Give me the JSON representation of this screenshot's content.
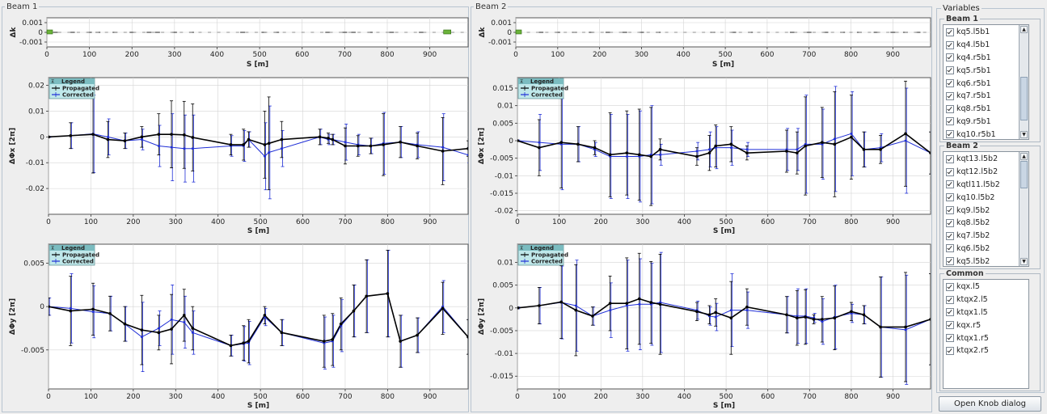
{
  "panels": {
    "beam1_title": "Beam 1",
    "beam2_title": "Beam 2"
  },
  "colors": {
    "propagated": "#000000",
    "corrected": "#1f2ed6",
    "legend_bg": "#bfe8ea",
    "legend_header": "#7bbcc0",
    "knob_fill": "#6ab23a"
  },
  "legend": {
    "title": "Legend",
    "items": [
      "Propagated",
      "Corrected"
    ]
  },
  "chart_data": [
    {
      "id": "b1_dk",
      "type": "scatter",
      "title": "",
      "xlabel": "S [m]",
      "ylabel": "Δk",
      "xlim": [
        0,
        990
      ],
      "ylim": [
        -0.0015,
        0.0015
      ],
      "xticks": [
        0,
        100,
        200,
        300,
        400,
        500,
        600,
        700,
        800,
        900
      ],
      "yticks": [
        0.001,
        0,
        -0.001
      ],
      "ytick_labels": [
        "0.001",
        "0",
        "-0.001"
      ],
      "markers_s": [
        20,
        60,
        100,
        120,
        160,
        200,
        240,
        260,
        300,
        340,
        460,
        510,
        540,
        660,
        700,
        720,
        760,
        810,
        880,
        940
      ],
      "knob_s": [
        0,
        940
      ]
    },
    {
      "id": "b1_dphix",
      "type": "line",
      "title": "",
      "xlabel": "S [m]",
      "ylabel": "ΔΦx [2π]",
      "xlim": [
        0,
        990
      ],
      "ylim": [
        -0.03,
        0.023
      ],
      "yticks": [
        0.02,
        0.01,
        0,
        -0.01,
        -0.02
      ],
      "ytick_labels": [
        "0.02",
        "0.01",
        "0",
        "-0.01",
        "-0.02"
      ],
      "x": [
        0,
        52,
        105,
        140,
        180,
        220,
        260,
        290,
        320,
        340,
        430,
        460,
        472,
        510,
        520,
        550,
        640,
        660,
        670,
        700,
        730,
        760,
        790,
        830,
        870,
        930,
        990
      ],
      "series": [
        {
          "name": "Propagated",
          "values": [
            0,
            0.0005,
            0.001,
            -0.001,
            -0.0015,
            0,
            0.001,
            0.001,
            0.0008,
            -0.0002,
            -0.003,
            -0.003,
            -0.001,
            -0.003,
            -0.0025,
            -0.001,
            0,
            -0.0005,
            -0.001,
            -0.0035,
            -0.0035,
            -0.0035,
            -0.003,
            -0.002,
            -0.0035,
            -0.0055,
            -0.0045
          ]
        },
        {
          "name": "Corrected",
          "values": [
            0,
            0.0005,
            0.0012,
            0,
            -0.0015,
            -0.001,
            -0.0035,
            -0.004,
            -0.0045,
            -0.0045,
            -0.0035,
            -0.0035,
            -0.001,
            -0.0075,
            -0.006,
            -0.0045,
            0,
            -0.001,
            -0.001,
            -0.002,
            -0.003,
            -0.0035,
            -0.0025,
            -0.002,
            -0.003,
            -0.004,
            -0.007
          ]
        }
      ],
      "errors": [
        0.0002,
        0.005,
        0.015,
        0.007,
        0.003,
        0.004,
        0.008,
        0.013,
        0.013,
        0.013,
        0.004,
        0.006,
        0.003,
        0.013,
        0.018,
        0.007,
        0.003,
        0.002,
        0.002,
        0.007,
        0.004,
        0.003,
        0.012,
        0.006,
        0.005,
        0.013,
        0.003
      ]
    },
    {
      "id": "b1_dphiy",
      "type": "line",
      "title": "",
      "xlabel": "S [m]",
      "ylabel": "ΔΦy [2π]",
      "xlim": [
        0,
        990
      ],
      "ylim": [
        -0.0095,
        0.0072
      ],
      "yticks": [
        0.005,
        0,
        -0.005
      ],
      "ytick_labels": [
        "0.005",
        "0",
        "-0.005"
      ],
      "x": [
        0,
        52,
        105,
        145,
        180,
        220,
        260,
        290,
        320,
        340,
        430,
        460,
        472,
        510,
        550,
        650,
        670,
        690,
        720,
        750,
        800,
        830,
        870,
        930,
        990
      ],
      "series": [
        {
          "name": "Propagated",
          "values": [
            0,
            -0.0005,
            -0.0003,
            -0.0008,
            -0.002,
            -0.0027,
            -0.003,
            -0.0026,
            -0.001,
            -0.0025,
            -0.0045,
            -0.0042,
            -0.004,
            -0.001,
            -0.003,
            -0.004,
            -0.0038,
            -0.002,
            -0.0005,
            0.0012,
            0.0015,
            -0.004,
            -0.0033,
            -0.0002,
            -0.0035
          ]
        },
        {
          "name": "Corrected",
          "values": [
            0,
            -0.0002,
            -0.0006,
            -0.0008,
            -0.002,
            -0.0035,
            -0.0025,
            -0.0015,
            -0.0018,
            -0.003,
            -0.0045,
            -0.0043,
            -0.0042,
            -0.0012,
            -0.003,
            -0.0042,
            -0.004,
            -0.0022,
            -0.0005,
            0.0012,
            0.0015,
            -0.004,
            -0.0033,
            0,
            -0.0035
          ]
        }
      ],
      "errors": [
        0.001,
        0.004,
        0.003,
        0.002,
        0.002,
        0.004,
        0.002,
        0.004,
        0.003,
        0.0025,
        0.0012,
        0.002,
        0.0025,
        0.001,
        0.0015,
        0.003,
        0.003,
        0.003,
        0.003,
        0.0042,
        0.005,
        0.003,
        0.002,
        0.003,
        0.002
      ]
    },
    {
      "id": "b2_dk",
      "type": "scatter",
      "title": "",
      "xlabel": "S [m]",
      "ylabel": "Δk",
      "xlim": [
        0,
        990
      ],
      "ylim": [
        -0.0015,
        0.0015
      ],
      "xticks": [
        0,
        100,
        200,
        300,
        400,
        500,
        600,
        700,
        800,
        900
      ],
      "yticks": [
        0.001,
        0,
        -0.001
      ],
      "ytick_labels": [
        "0.001",
        "0",
        "-0.001"
      ],
      "markers_s": [
        60,
        100,
        140,
        180,
        220,
        260,
        300,
        340,
        470,
        520,
        560,
        660,
        700,
        740,
        780,
        820,
        860,
        900,
        930,
        960
      ],
      "knob_s": [
        0
      ]
    },
    {
      "id": "b2_dphix",
      "type": "line",
      "title": "",
      "xlabel": "S [m]",
      "ylabel": "ΔΦx [2π]",
      "xlim": [
        0,
        990
      ],
      "ylim": [
        -0.021,
        0.018
      ],
      "yticks": [
        0.015,
        0.01,
        0.005,
        0,
        -0.005,
        -0.01,
        -0.015,
        -0.02
      ],
      "ytick_labels": [
        "0.015",
        "0.01",
        "0.005",
        "0",
        "-0.005",
        "-0.01",
        "-0.015",
        "-0.02"
      ],
      "x": [
        0,
        52,
        105,
        145,
        185,
        222,
        262,
        292,
        320,
        342,
        430,
        460,
        475,
        512,
        550,
        645,
        670,
        690,
        730,
        760,
        800,
        830,
        870,
        930,
        990
      ],
      "series": [
        {
          "name": "Propagated",
          "values": [
            0,
            -0.002,
            -0.0005,
            -0.001,
            -0.002,
            -0.004,
            -0.0035,
            -0.004,
            -0.0045,
            -0.0025,
            -0.0045,
            -0.0035,
            -0.0015,
            -0.001,
            -0.0035,
            -0.003,
            -0.0035,
            -0.0015,
            -0.0005,
            -0.001,
            0.001,
            -0.0025,
            -0.0025,
            0.002,
            -0.0035
          ]
        },
        {
          "name": "Corrected",
          "values": [
            0,
            -0.0005,
            -0.001,
            -0.001,
            -0.0025,
            -0.0045,
            -0.0045,
            -0.0045,
            -0.004,
            -0.004,
            -0.003,
            -0.0025,
            -0.002,
            -0.002,
            -0.0025,
            -0.0025,
            -0.0025,
            -0.001,
            -0.001,
            0.0005,
            0.002,
            -0.0025,
            -0.002,
            0,
            -0.0035
          ]
        }
      ],
      "errors": [
        0.0002,
        0.008,
        0.013,
        0.005,
        0.002,
        0.012,
        0.012,
        0.013,
        0.014,
        0.003,
        0.0025,
        0.005,
        0.006,
        0.005,
        0.002,
        0.006,
        0.006,
        0.014,
        0.01,
        0.015,
        0.012,
        0.005,
        0.004,
        0.015,
        0.006
      ]
    },
    {
      "id": "b2_dphiy",
      "type": "line",
      "title": "",
      "xlabel": "S [m]",
      "ylabel": "ΔΦy [2π]",
      "xlim": [
        0,
        990
      ],
      "ylim": [
        -0.0178,
        0.014
      ],
      "yticks": [
        0.01,
        0.005,
        0,
        -0.005,
        -0.01,
        -0.015
      ],
      "ytick_labels": [
        "0.01",
        "0.005",
        "0",
        "-0.005",
        "-0.01",
        "-0.015"
      ],
      "x": [
        0,
        52,
        105,
        140,
        180,
        222,
        262,
        292,
        320,
        342,
        430,
        460,
        475,
        512,
        550,
        645,
        670,
        690,
        710,
        730,
        760,
        800,
        830,
        870,
        930,
        990
      ],
      "series": [
        {
          "name": "Propagated",
          "values": [
            0,
            0.0005,
            0.0013,
            -0.0005,
            -0.0018,
            0.001,
            0.001,
            0.002,
            0.0012,
            0.0008,
            -0.0008,
            -0.0015,
            -0.001,
            -0.0022,
            0.0002,
            -0.0015,
            -0.0022,
            -0.002,
            -0.0025,
            -0.0025,
            -0.0022,
            -0.0008,
            -0.0015,
            -0.0042,
            -0.0042,
            -0.0025
          ]
        },
        {
          "name": "Corrected",
          "values": [
            0,
            0.0005,
            0.0012,
            0.0005,
            -0.0018,
            -0.0005,
            0.0005,
            0.0008,
            0.0008,
            0.0012,
            -0.0005,
            -0.0018,
            -0.002,
            -0.0005,
            -0.0005,
            -0.0015,
            -0.0018,
            -0.0018,
            -0.0022,
            -0.003,
            -0.002,
            -0.0012,
            -0.0015,
            -0.0042,
            -0.0048,
            -0.0025
          ]
        }
      ],
      "errors": [
        0.0002,
        0.004,
        0.008,
        0.01,
        0.002,
        0.006,
        0.01,
        0.01,
        0.009,
        0.011,
        0.002,
        0.002,
        0.003,
        0.008,
        0.004,
        0.004,
        0.006,
        0.006,
        0.001,
        0.005,
        0.007,
        0.002,
        0.002,
        0.011,
        0.012,
        0.01
      ]
    }
  ],
  "sidebar": {
    "title": "Variables",
    "groups": [
      {
        "title": "Beam 1",
        "items": [
          "kq5.l5b1",
          "kq4.l5b1",
          "kq4.r5b1",
          "kq5.r5b1",
          "kq6.r5b1",
          "kq7.r5b1",
          "kq8.r5b1",
          "kq9.r5b1",
          "kq10.r5b1"
        ]
      },
      {
        "title": "Beam 2",
        "items": [
          "kqt13.l5b2",
          "kqt12.l5b2",
          "kqtl11.l5b2",
          "kq10.l5b2",
          "kq9.l5b2",
          "kq8.l5b2",
          "kq7.l5b2",
          "kq6.l5b2",
          "kq5.l5b2"
        ]
      },
      {
        "title": "Common",
        "items": [
          "kqx.l5",
          "ktqx2.l5",
          "ktqx1.l5",
          "kqx.r5",
          "ktqx1.r5",
          "ktqx2.r5"
        ]
      }
    ],
    "button_label": "Open Knob dialog"
  }
}
